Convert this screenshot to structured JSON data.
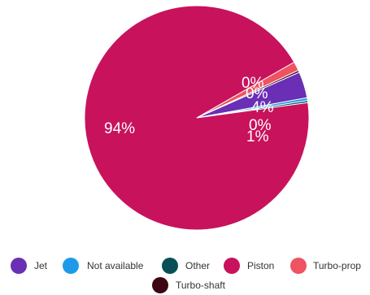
{
  "chart_data": {
    "type": "pie",
    "title": "",
    "slices": [
      {
        "label": "Jet",
        "value": 3.8,
        "display": "4%",
        "color": "#6a2fb5"
      },
      {
        "label": "Not available",
        "value": 0.4,
        "display": "0%",
        "color": "#1e9be8"
      },
      {
        "label": "Other",
        "value": 0.3,
        "display": "0%",
        "color": "#0a4f57"
      },
      {
        "label": "Piston",
        "value": 93.9,
        "display": "94%",
        "color": "#c8125c"
      },
      {
        "label": "Turbo-prop",
        "value": 1.3,
        "display": "1%",
        "color": "#ef5261"
      },
      {
        "label": "Turbo-shaft",
        "value": 0.3,
        "display": "0%",
        "color": "#3d0612"
      }
    ],
    "legend_position": "bottom",
    "legend": [
      "Jet",
      "Not available",
      "Other",
      "Piston",
      "Turbo-prop",
      "Turbo-shaft"
    ]
  }
}
